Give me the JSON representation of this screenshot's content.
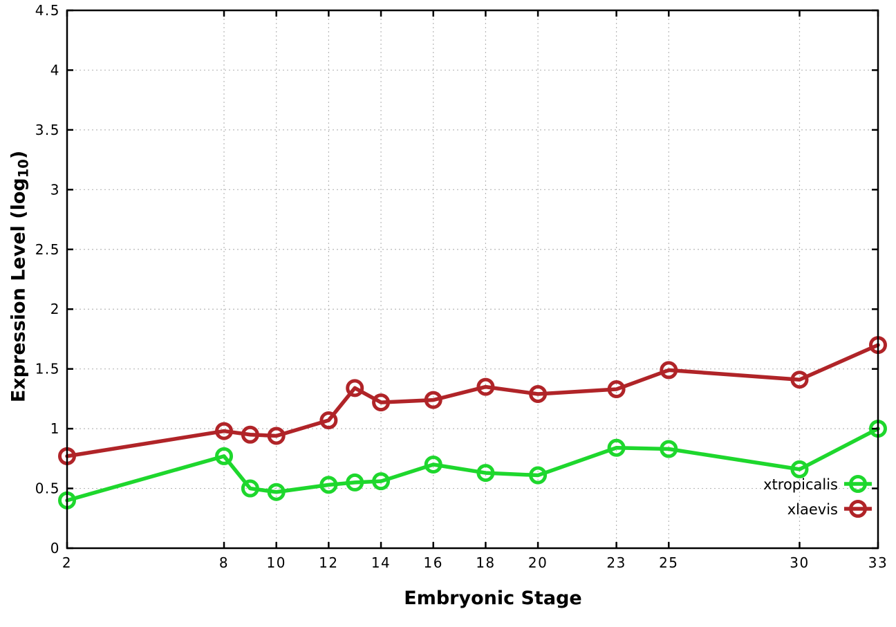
{
  "figure": {
    "background": "#ffffff"
  },
  "chart_data": {
    "type": "line",
    "title": "",
    "xlabel": "Embryonic Stage",
    "ylabel": "Expression Level (log10)",
    "ylabel_parts": {
      "base": "Expression Level (log",
      "sub": "10",
      "close": ")"
    },
    "x": [
      2,
      8,
      9,
      10,
      12,
      13,
      14,
      16,
      18,
      20,
      23,
      25,
      30,
      33
    ],
    "xticks": [
      2,
      8,
      10,
      12,
      14,
      16,
      18,
      20,
      23,
      25,
      30,
      33
    ],
    "yticks": [
      0,
      0.5,
      1,
      1.5,
      2,
      2.5,
      3,
      3.5,
      4,
      4.5
    ],
    "xlim": [
      2,
      33
    ],
    "ylim": [
      0,
      4.5
    ],
    "grid": true,
    "legend_position": "inside-bottom-right",
    "marker_style": "open-circle",
    "series": [
      {
        "name": "xtropicalis",
        "color": "#1ed72d",
        "values": [
          0.4,
          0.77,
          0.5,
          0.47,
          0.53,
          0.55,
          0.56,
          0.7,
          0.63,
          0.61,
          0.84,
          0.83,
          0.66,
          1.0
        ]
      },
      {
        "name": "xlaevis",
        "color": "#b02428",
        "values": [
          0.77,
          0.98,
          0.95,
          0.94,
          1.07,
          1.34,
          1.22,
          1.24,
          1.35,
          1.29,
          1.33,
          1.49,
          1.41,
          1.7
        ]
      }
    ],
    "colors": {
      "axis": "#000000",
      "grid": "#b8b8b8",
      "text": "#000000"
    }
  }
}
